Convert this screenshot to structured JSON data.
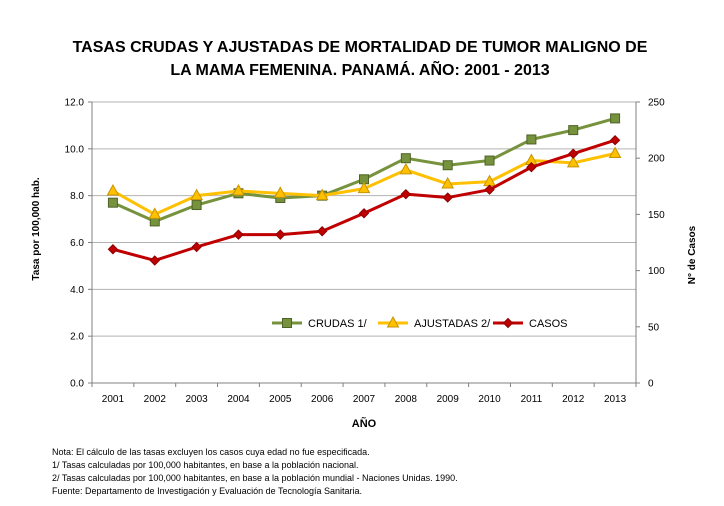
{
  "chart_data": {
    "type": "line",
    "title_line1": "TASAS CRUDAS Y AJUSTADAS DE MORTALIDAD DE TUMOR MALIGNO DE",
    "title_line2": "LA MAMA FEMENINA.  PANAMÁ. AÑO: 2001 -  2013",
    "xlabel": "AÑO",
    "ylabel_left": "Tasa  por 100,000 hab.",
    "ylabel_right": "N° de Casos",
    "categories": [
      "2001",
      "2002",
      "2003",
      "2004",
      "2005",
      "2006",
      "2007",
      "2008",
      "2009",
      "2010",
      "2011",
      "2012",
      "2013"
    ],
    "ylim_left": [
      0,
      12
    ],
    "yticks_left": [
      "0.0",
      "2.0",
      "4.0",
      "6.0",
      "8.0",
      "10.0",
      "12.0"
    ],
    "ylim_right": [
      0,
      250
    ],
    "yticks_right": [
      "0",
      "50",
      "100",
      "150",
      "200",
      "250"
    ],
    "grid": "horizontal",
    "legend_position": "inside-bottom",
    "series": [
      {
        "name": "CRUDAS 1/",
        "axis": "left",
        "color": "#76923c",
        "marker": "square",
        "values": [
          7.7,
          6.9,
          7.6,
          8.1,
          7.9,
          8.0,
          8.7,
          9.6,
          9.3,
          9.5,
          10.4,
          10.8,
          11.3
        ]
      },
      {
        "name": "AJUSTADAS 2/",
        "axis": "left",
        "color": "#ffc000",
        "marker": "triangle",
        "values": [
          8.2,
          7.2,
          8.0,
          8.2,
          8.1,
          8.0,
          8.3,
          9.1,
          8.5,
          8.6,
          9.5,
          9.4,
          9.8
        ]
      },
      {
        "name": "CASOS",
        "axis": "right",
        "color": "#c00000",
        "marker": "diamond",
        "values": [
          119,
          109,
          121,
          132,
          132,
          135,
          151,
          168,
          165,
          172,
          192,
          204,
          216
        ]
      }
    ]
  },
  "notes": [
    "Nota: El cálculo de las tasas excluyen los casos cuya edad no fue especificada.",
    "1/ Tasas calculadas por 100,000  habitantes, en base a la población nacional.",
    "2/ Tasas calculadas por 100,000 habitantes, en base a la población mundial - Naciones Unidas. 1990.",
    "Fuente: Departamento de Investigación y Evaluación de Tecnología Sanitaria."
  ]
}
